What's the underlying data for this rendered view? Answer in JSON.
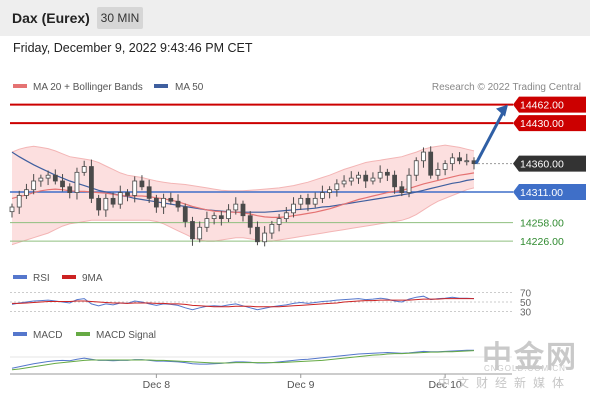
{
  "header": {
    "title": "Dax (Eurex)",
    "timeframe": "30 MIN"
  },
  "timestamp": "Friday, December 9, 2022 9:43:46 PM CET",
  "credit": "Research © 2022 Trading Central",
  "legend": {
    "ma20": "MA 20 + Bollinger Bands",
    "ma50": "MA 50",
    "rsi": "RSI",
    "rsi_ma": "9MA",
    "macd": "MACD",
    "macd_signal": "MACD Signal"
  },
  "colors": {
    "bull": "#4a4a4a",
    "bear": "#4a4a4a",
    "ma20": "#e57373",
    "band": "#fbd9d9",
    "ma50": "#3f5f9f",
    "resistance": "#cc0000",
    "pivot": "#3f6fc8",
    "support": "#8fbf7f",
    "current": "#333333",
    "arrow": "#2f5fa5",
    "rsi": "#5577cc",
    "rsi_ma": "#cc2222",
    "macd": "#5577cc",
    "macd_signal": "#66aa44"
  },
  "watermark": {
    "logo": "中金网",
    "domain": "CNGOLD.COM.CN",
    "tagline": "中文财经新媒体"
  },
  "chart_data": [
    {
      "type": "candlestick",
      "title": "Dax (Eurex) 30 MIN",
      "ylim": [
        14190,
        14470
      ],
      "x_ticks": [
        {
          "label": "Dec 8",
          "index": 20
        },
        {
          "label": "Dec 9",
          "index": 40
        },
        {
          "label": "Dec 10",
          "index": 60
        }
      ],
      "levels": [
        {
          "value": 14462.0,
          "label": "14462.00",
          "kind": "resistance"
        },
        {
          "value": 14430.0,
          "label": "14430.00",
          "kind": "resistance"
        },
        {
          "value": 14360.0,
          "label": "14360.00",
          "kind": "current"
        },
        {
          "value": 14311.0,
          "label": "14311.00",
          "kind": "pivot"
        },
        {
          "value": 14258.0,
          "label": "14258.00",
          "kind": "support"
        },
        {
          "value": 14226.0,
          "label": "14226.00",
          "kind": "support"
        }
      ],
      "arrow": {
        "from": 14360,
        "to": 14462
      },
      "closes": [
        14285,
        14305,
        14315,
        14330,
        14335,
        14340,
        14330,
        14320,
        14310,
        14345,
        14355,
        14300,
        14280,
        14300,
        14290,
        14310,
        14305,
        14330,
        14320,
        14300,
        14285,
        14300,
        14295,
        14285,
        14260,
        14230,
        14250,
        14265,
        14270,
        14265,
        14280,
        14290,
        14270,
        14250,
        14225,
        14240,
        14255,
        14265,
        14275,
        14290,
        14300,
        14290,
        14300,
        14310,
        14315,
        14325,
        14330,
        14335,
        14340,
        14330,
        14335,
        14345,
        14340,
        14320,
        14310,
        14340,
        14365,
        14380,
        14340,
        14350,
        14360,
        14370,
        14365,
        14365,
        14360
      ],
      "ma20": [
        14300,
        14303,
        14306,
        14310,
        14313,
        14315,
        14316,
        14315,
        14313,
        14312,
        14312,
        14311,
        14310,
        14309,
        14307,
        14305,
        14304,
        14304,
        14304,
        14303,
        14301,
        14299,
        14297,
        14294,
        14290,
        14286,
        14283,
        14280,
        14278,
        14277,
        14276,
        14276,
        14275,
        14273,
        14270,
        14268,
        14267,
        14267,
        14268,
        14270,
        14272,
        14274,
        14276,
        14279,
        14282,
        14286,
        14290,
        14294,
        14298,
        14301,
        14304,
        14307,
        14310,
        14312,
        14314,
        14317,
        14321,
        14325,
        14328,
        14331,
        14334,
        14337,
        14340,
        14342,
        14344
      ],
      "bb_upper": [
        14380,
        14385,
        14388,
        14390,
        14388,
        14386,
        14382,
        14377,
        14372,
        14370,
        14368,
        14366,
        14362,
        14356,
        14350,
        14344,
        14340,
        14338,
        14336,
        14333,
        14330,
        14328,
        14326,
        14325,
        14324,
        14322,
        14320,
        14318,
        14316,
        14314,
        14313,
        14313,
        14313,
        14314,
        14315,
        14316,
        14317,
        14318,
        14320,
        14322,
        14325,
        14328,
        14332,
        14336,
        14340,
        14345,
        14350,
        14354,
        14358,
        14362,
        14364,
        14366,
        14368,
        14370,
        14372,
        14376,
        14380,
        14385,
        14388,
        14390,
        14392,
        14390,
        14388,
        14385,
        14382
      ],
      "bb_lower": [
        14220,
        14224,
        14228,
        14232,
        14236,
        14240,
        14246,
        14252,
        14256,
        14258,
        14260,
        14262,
        14262,
        14262,
        14262,
        14262,
        14262,
        14262,
        14262,
        14262,
        14260,
        14256,
        14250,
        14244,
        14238,
        14232,
        14228,
        14226,
        14226,
        14228,
        14230,
        14232,
        14232,
        14230,
        14228,
        14226,
        14226,
        14228,
        14230,
        14232,
        14234,
        14236,
        14238,
        14240,
        14242,
        14244,
        14246,
        14248,
        14250,
        14252,
        14254,
        14256,
        14258,
        14260,
        14262,
        14266,
        14272,
        14280,
        14288,
        14295,
        14300,
        14305,
        14310,
        14315,
        14318
      ],
      "ma50": [
        14380,
        14372,
        14365,
        14358,
        14352,
        14346,
        14340,
        14335,
        14330,
        14326,
        14322,
        14318,
        14314,
        14311,
        14308,
        14305,
        14303,
        14300,
        14298,
        14296,
        14294,
        14292,
        14290,
        14288,
        14286,
        14284,
        14282,
        14280,
        14279,
        14278,
        14277,
        14276,
        14276,
        14276,
        14276,
        14276,
        14277,
        14278,
        14279,
        14280,
        14281,
        14282,
        14283,
        14285,
        14286,
        14288,
        14290,
        14292,
        14294,
        14296,
        14298,
        14300,
        14302,
        14304,
        14306,
        14308,
        14311,
        14314,
        14317,
        14320,
        14323,
        14326,
        14328,
        14331,
        14333
      ]
    },
    {
      "type": "line",
      "name": "RSI",
      "ylim": [
        25,
        75
      ],
      "y_ticks": [
        70,
        50,
        30
      ],
      "series": [
        {
          "name": "RSI",
          "values": [
            45,
            48,
            50,
            52,
            53,
            54,
            52,
            50,
            48,
            55,
            57,
            46,
            42,
            46,
            44,
            48,
            47,
            52,
            50,
            46,
            43,
            46,
            45,
            43,
            38,
            34,
            38,
            41,
            42,
            41,
            44,
            46,
            42,
            38,
            34,
            37,
            40,
            42,
            44,
            47,
            49,
            47,
            49,
            51,
            52,
            54,
            55,
            56,
            57,
            55,
            56,
            58,
            56,
            52,
            50,
            56,
            60,
            62,
            55,
            57,
            58,
            60,
            58,
            58,
            57
          ]
        },
        {
          "name": "9MA",
          "values": [
            47,
            47,
            48,
            49,
            50,
            51,
            51,
            51,
            51,
            52,
            52,
            51,
            50,
            49,
            48,
            48,
            47,
            48,
            48,
            48,
            47,
            47,
            46,
            46,
            45,
            43,
            42,
            41,
            40,
            40,
            40,
            41,
            41,
            41,
            40,
            40,
            40,
            40,
            41,
            42,
            43,
            44,
            45,
            46,
            47,
            48,
            50,
            51,
            52,
            53,
            53,
            54,
            54,
            54,
            54,
            54,
            55,
            56,
            56,
            56,
            57,
            57,
            57,
            57,
            57
          ]
        }
      ]
    },
    {
      "type": "line",
      "name": "MACD",
      "ylim": [
        -40,
        40
      ],
      "series": [
        {
          "name": "MACD",
          "values": [
            -30,
            -26,
            -22,
            -18,
            -15,
            -12,
            -10,
            -9,
            -10,
            -6,
            -3,
            -6,
            -9,
            -9,
            -10,
            -9,
            -9,
            -7,
            -7,
            -9,
            -11,
            -11,
            -12,
            -13,
            -15,
            -18,
            -19,
            -19,
            -18,
            -17,
            -15,
            -13,
            -13,
            -14,
            -16,
            -16,
            -15,
            -13,
            -11,
            -9,
            -7,
            -6,
            -4,
            -2,
            0,
            2,
            4,
            6,
            8,
            9,
            10,
            11,
            12,
            11,
            10,
            11,
            13,
            15,
            14,
            14,
            15,
            16,
            17,
            18,
            18
          ]
        },
        {
          "name": "MACD Signal",
          "values": [
            -34,
            -32,
            -29,
            -26,
            -23,
            -20,
            -17,
            -15,
            -13,
            -11,
            -9,
            -8,
            -8,
            -8,
            -8,
            -8,
            -8,
            -8,
            -8,
            -8,
            -9,
            -9,
            -10,
            -11,
            -12,
            -13,
            -14,
            -15,
            -16,
            -16,
            -16,
            -15,
            -15,
            -15,
            -15,
            -15,
            -15,
            -15,
            -14,
            -13,
            -12,
            -11,
            -10,
            -9,
            -7,
            -5,
            -3,
            -1,
            1,
            3,
            5,
            6,
            8,
            9,
            9,
            10,
            11,
            12,
            13,
            13,
            14,
            14,
            15,
            16,
            17
          ]
        }
      ]
    }
  ]
}
